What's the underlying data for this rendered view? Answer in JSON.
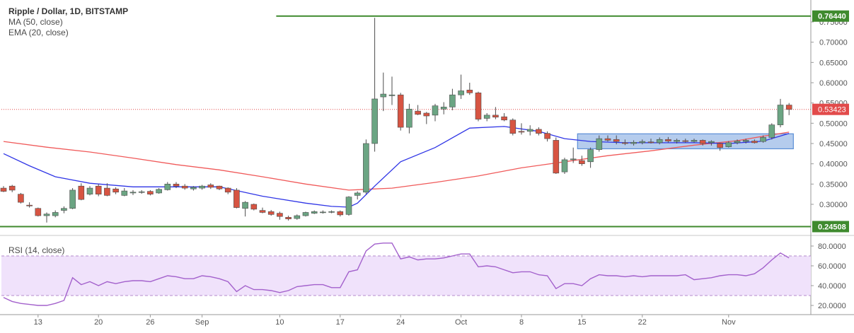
{
  "legend": {
    "title": "Ripple / Dollar, 1D, BITSTAMP",
    "ma": "MA (50, close)",
    "ema": "EMA (20, close)",
    "rsi": "RSI (14, close)"
  },
  "colors": {
    "up": "#6ba583",
    "down": "#d75442",
    "ma": "#f05a5a",
    "ema": "#2f35e6",
    "rsi": "#a361cc",
    "level": "#3f8a2e",
    "price": "#e24b4b",
    "box": "#5b8fd6"
  },
  "chart_data": [
    {
      "type": "candlestick",
      "title": "Ripple / Dollar, 1D, BITSTAMP",
      "ylim": [
        0.24,
        0.77
      ],
      "y_ticks": [
        "0.75000",
        "0.70000",
        "0.65000",
        "0.60000",
        "0.55000",
        "0.50000",
        "0.45000",
        "0.40000",
        "0.35000",
        "0.30000"
      ],
      "y_tick_values": [
        0.75,
        0.7,
        0.65,
        0.6,
        0.55,
        0.5,
        0.45,
        0.4,
        0.35,
        0.3
      ],
      "x_ticks": [
        {
          "i": 4,
          "label": "13"
        },
        {
          "i": 11,
          "label": "20"
        },
        {
          "i": 17,
          "label": "26"
        },
        {
          "i": 23,
          "label": "Sep"
        },
        {
          "i": 32,
          "label": "10"
        },
        {
          "i": 39,
          "label": "17"
        },
        {
          "i": 46,
          "label": "24"
        },
        {
          "i": 53,
          "label": "Oct"
        },
        {
          "i": 60,
          "label": "8"
        },
        {
          "i": 67,
          "label": "15"
        },
        {
          "i": 74,
          "label": "22"
        },
        {
          "i": 84,
          "label": "Nov"
        }
      ],
      "candles": [
        [
          0.34,
          0.345,
          0.33,
          0.332
        ],
        [
          0.345,
          0.348,
          0.33,
          0.335
        ],
        [
          0.325,
          0.328,
          0.302,
          0.305
        ],
        [
          0.298,
          0.305,
          0.292,
          0.296
        ],
        [
          0.29,
          0.292,
          0.27,
          0.272
        ],
        [
          0.272,
          0.28,
          0.255,
          0.276
        ],
        [
          0.272,
          0.285,
          0.268,
          0.28
        ],
        [
          0.285,
          0.295,
          0.278,
          0.29
        ],
        [
          0.29,
          0.34,
          0.288,
          0.335
        ],
        [
          0.345,
          0.352,
          0.31,
          0.312
        ],
        [
          0.325,
          0.345,
          0.322,
          0.34
        ],
        [
          0.345,
          0.35,
          0.32,
          0.325
        ],
        [
          0.34,
          0.352,
          0.32,
          0.322
        ],
        [
          0.338,
          0.342,
          0.325,
          0.33
        ],
        [
          0.322,
          0.34,
          0.32,
          0.333
        ],
        [
          0.328,
          0.335,
          0.323,
          0.33
        ],
        [
          0.33,
          0.335,
          0.326,
          0.331
        ],
        [
          0.332,
          0.335,
          0.322,
          0.325
        ],
        [
          0.328,
          0.34,
          0.326,
          0.337
        ],
        [
          0.336,
          0.355,
          0.334,
          0.35
        ],
        [
          0.35,
          0.355,
          0.34,
          0.345
        ],
        [
          0.345,
          0.35,
          0.336,
          0.34
        ],
        [
          0.338,
          0.345,
          0.334,
          0.342
        ],
        [
          0.34,
          0.348,
          0.336,
          0.345
        ],
        [
          0.348,
          0.352,
          0.338,
          0.342
        ],
        [
          0.345,
          0.346,
          0.335,
          0.338
        ],
        [
          0.34,
          0.342,
          0.325,
          0.33
        ],
        [
          0.335,
          0.34,
          0.29,
          0.292
        ],
        [
          0.29,
          0.308,
          0.27,
          0.305
        ],
        [
          0.3,
          0.302,
          0.285,
          0.288
        ],
        [
          0.285,
          0.292,
          0.278,
          0.28
        ],
        [
          0.282,
          0.286,
          0.272,
          0.275
        ],
        [
          0.278,
          0.282,
          0.262,
          0.27
        ],
        [
          0.268,
          0.272,
          0.26,
          0.264
        ],
        [
          0.265,
          0.275,
          0.262,
          0.272
        ],
        [
          0.272,
          0.282,
          0.27,
          0.28
        ],
        [
          0.278,
          0.285,
          0.276,
          0.282
        ],
        [
          0.281,
          0.285,
          0.277,
          0.281
        ],
        [
          0.281,
          0.285,
          0.278,
          0.282
        ],
        [
          0.282,
          0.285,
          0.27,
          0.274
        ],
        [
          0.275,
          0.32,
          0.272,
          0.318
        ],
        [
          0.322,
          0.332,
          0.312,
          0.328
        ],
        [
          0.33,
          0.46,
          0.325,
          0.45
        ],
        [
          0.45,
          0.76,
          0.43,
          0.56
        ],
        [
          0.565,
          0.625,
          0.53,
          0.572
        ],
        [
          0.568,
          0.615,
          0.545,
          0.57
        ],
        [
          0.57,
          0.575,
          0.482,
          0.49
        ],
        [
          0.49,
          0.548,
          0.475,
          0.535
        ],
        [
          0.53,
          0.545,
          0.52,
          0.522
        ],
        [
          0.525,
          0.528,
          0.498,
          0.518
        ],
        [
          0.52,
          0.548,
          0.505,
          0.543
        ],
        [
          0.535,
          0.552,
          0.522,
          0.54
        ],
        [
          0.54,
          0.585,
          0.532,
          0.57
        ],
        [
          0.57,
          0.62,
          0.56,
          0.58
        ],
        [
          0.582,
          0.6,
          0.57,
          0.575
        ],
        [
          0.575,
          0.578,
          0.505,
          0.51
        ],
        [
          0.512,
          0.525,
          0.505,
          0.52
        ],
        [
          0.52,
          0.54,
          0.51,
          0.515
        ],
        [
          0.516,
          0.525,
          0.505,
          0.508
        ],
        [
          0.508,
          0.512,
          0.47,
          0.475
        ],
        [
          0.48,
          0.5,
          0.472,
          0.478
        ],
        [
          0.48,
          0.495,
          0.47,
          0.485
        ],
        [
          0.485,
          0.49,
          0.47,
          0.475
        ],
        [
          0.475,
          0.48,
          0.455,
          0.462
        ],
        [
          0.458,
          0.465,
          0.375,
          0.377
        ],
        [
          0.38,
          0.415,
          0.375,
          0.41
        ],
        [
          0.41,
          0.44,
          0.402,
          0.412
        ],
        [
          0.408,
          0.42,
          0.395,
          0.4
        ],
        [
          0.405,
          0.44,
          0.39,
          0.435
        ],
        [
          0.435,
          0.47,
          0.43,
          0.462
        ],
        [
          0.462,
          0.47,
          0.455,
          0.458
        ],
        [
          0.46,
          0.47,
          0.448,
          0.455
        ],
        [
          0.452,
          0.46,
          0.446,
          0.45
        ],
        [
          0.45,
          0.458,
          0.445,
          0.453
        ],
        [
          0.452,
          0.46,
          0.448,
          0.455
        ],
        [
          0.454,
          0.462,
          0.45,
          0.452
        ],
        [
          0.452,
          0.465,
          0.448,
          0.46
        ],
        [
          0.46,
          0.466,
          0.452,
          0.456
        ],
        [
          0.455,
          0.462,
          0.45,
          0.458
        ],
        [
          0.457,
          0.462,
          0.452,
          0.455
        ],
        [
          0.455,
          0.462,
          0.452,
          0.458
        ],
        [
          0.458,
          0.46,
          0.445,
          0.45
        ],
        [
          0.452,
          0.458,
          0.445,
          0.455
        ],
        [
          0.45,
          0.452,
          0.432,
          0.44
        ],
        [
          0.442,
          0.456,
          0.44,
          0.452
        ],
        [
          0.452,
          0.46,
          0.448,
          0.456
        ],
        [
          0.455,
          0.462,
          0.45,
          0.458
        ],
        [
          0.456,
          0.46,
          0.45,
          0.452
        ],
        [
          0.455,
          0.47,
          0.452,
          0.465
        ],
        [
          0.465,
          0.5,
          0.46,
          0.496
        ],
        [
          0.496,
          0.56,
          0.49,
          0.545
        ],
        [
          0.545,
          0.55,
          0.52,
          0.534
        ]
      ],
      "ma50": [
        [
          0,
          0.455
        ],
        [
          5,
          0.441
        ],
        [
          10,
          0.429
        ],
        [
          15,
          0.414
        ],
        [
          20,
          0.398
        ],
        [
          25,
          0.385
        ],
        [
          30,
          0.368
        ],
        [
          35,
          0.35
        ],
        [
          40,
          0.335
        ],
        [
          45,
          0.34
        ],
        [
          50,
          0.354
        ],
        [
          55,
          0.37
        ],
        [
          60,
          0.39
        ],
        [
          65,
          0.405
        ],
        [
          70,
          0.42
        ],
        [
          75,
          0.432
        ],
        [
          80,
          0.446
        ],
        [
          85,
          0.457
        ],
        [
          88,
          0.468
        ],
        [
          91,
          0.478
        ]
      ],
      "ema20": [
        [
          0,
          0.425
        ],
        [
          3,
          0.395
        ],
        [
          6,
          0.368
        ],
        [
          10,
          0.352
        ],
        [
          15,
          0.343
        ],
        [
          20,
          0.343
        ],
        [
          25,
          0.343
        ],
        [
          30,
          0.32
        ],
        [
          35,
          0.303
        ],
        [
          38,
          0.295
        ],
        [
          40,
          0.293
        ],
        [
          41,
          0.303
        ],
        [
          43,
          0.345
        ],
        [
          46,
          0.405
        ],
        [
          50,
          0.44
        ],
        [
          54,
          0.488
        ],
        [
          58,
          0.492
        ],
        [
          62,
          0.48
        ],
        [
          65,
          0.462
        ],
        [
          68,
          0.455
        ],
        [
          72,
          0.452
        ],
        [
          76,
          0.452
        ],
        [
          80,
          0.452
        ],
        [
          84,
          0.45
        ],
        [
          88,
          0.456
        ],
        [
          91,
          0.475
        ]
      ],
      "levels": [
        {
          "value": 0.7644,
          "label": "0.76440",
          "from_i": 32
        },
        {
          "value": 0.24508,
          "label": "0.24508",
          "from_i": 0
        }
      ],
      "last_price": {
        "value": 0.53423,
        "label": "0.53423"
      },
      "box": {
        "from_i": 66.5,
        "to_i": 91.5,
        "low": 0.437,
        "high": 0.474
      }
    },
    {
      "type": "line",
      "title": "RSI (14, close)",
      "ylim": [
        13,
        88
      ],
      "y_ticks": [
        "80.0000",
        "60.0000",
        "40.0000",
        "20.0000"
      ],
      "y_tick_values": [
        80,
        60,
        40,
        20
      ],
      "band": [
        30,
        70
      ],
      "rsi": [
        [
          0,
          28
        ],
        [
          1,
          24
        ],
        [
          2,
          22
        ],
        [
          3,
          21
        ],
        [
          4,
          20
        ],
        [
          5,
          20
        ],
        [
          6,
          22
        ],
        [
          7,
          25
        ],
        [
          8,
          48
        ],
        [
          9,
          41
        ],
        [
          10,
          44
        ],
        [
          11,
          40
        ],
        [
          12,
          44
        ],
        [
          13,
          42
        ],
        [
          14,
          44
        ],
        [
          15,
          45
        ],
        [
          16,
          45
        ],
        [
          17,
          44
        ],
        [
          18,
          47
        ],
        [
          19,
          50
        ],
        [
          20,
          49
        ],
        [
          21,
          47
        ],
        [
          22,
          47
        ],
        [
          23,
          50
        ],
        [
          24,
          49
        ],
        [
          25,
          47
        ],
        [
          26,
          44
        ],
        [
          27,
          34
        ],
        [
          28,
          40
        ],
        [
          29,
          36
        ],
        [
          30,
          36
        ],
        [
          31,
          35
        ],
        [
          32,
          33
        ],
        [
          33,
          35
        ],
        [
          34,
          39
        ],
        [
          35,
          40
        ],
        [
          36,
          41
        ],
        [
          37,
          41
        ],
        [
          38,
          38
        ],
        [
          39,
          38
        ],
        [
          40,
          54
        ],
        [
          41,
          56
        ],
        [
          42,
          75
        ],
        [
          43,
          82
        ],
        [
          44,
          83
        ],
        [
          45,
          83
        ],
        [
          46,
          67
        ],
        [
          47,
          69
        ],
        [
          48,
          66
        ],
        [
          49,
          67
        ],
        [
          50,
          67
        ],
        [
          51,
          68
        ],
        [
          52,
          70
        ],
        [
          53,
          72
        ],
        [
          54,
          72
        ],
        [
          55,
          59
        ],
        [
          56,
          60
        ],
        [
          57,
          59
        ],
        [
          58,
          56
        ],
        [
          59,
          53
        ],
        [
          60,
          54
        ],
        [
          61,
          54
        ],
        [
          62,
          51
        ],
        [
          63,
          50
        ],
        [
          64,
          37
        ],
        [
          65,
          42
        ],
        [
          66,
          42
        ],
        [
          67,
          40
        ],
        [
          68,
          47
        ],
        [
          69,
          51
        ],
        [
          70,
          50
        ],
        [
          71,
          50
        ],
        [
          72,
          49
        ],
        [
          73,
          50
        ],
        [
          74,
          49
        ],
        [
          75,
          50
        ],
        [
          76,
          50
        ],
        [
          77,
          50
        ],
        [
          78,
          50
        ],
        [
          79,
          51
        ],
        [
          80,
          46
        ],
        [
          81,
          47
        ],
        [
          82,
          48
        ],
        [
          83,
          50
        ],
        [
          84,
          51
        ],
        [
          85,
          51
        ],
        [
          86,
          50
        ],
        [
          87,
          52
        ],
        [
          88,
          58
        ],
        [
          89,
          66
        ],
        [
          90,
          73
        ],
        [
          91,
          68
        ]
      ]
    }
  ]
}
